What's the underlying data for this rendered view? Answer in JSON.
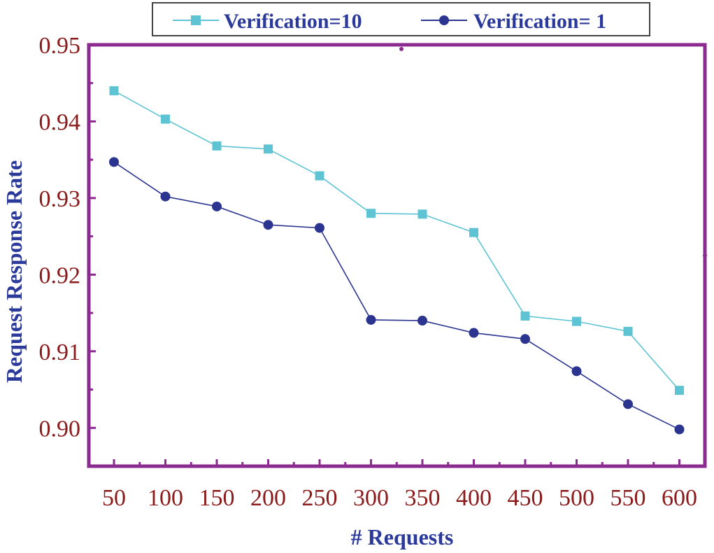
{
  "chart_data": {
    "type": "line",
    "title": "",
    "xlabel": "# Requests",
    "ylabel": "Request Response Rate",
    "x": [
      50,
      100,
      150,
      200,
      250,
      300,
      350,
      400,
      450,
      500,
      550,
      600
    ],
    "x_tick_labels": [
      "50",
      "100",
      "150",
      "200",
      "250",
      "300",
      "350",
      "400",
      "450",
      "500",
      "550",
      "600"
    ],
    "ylim": [
      0.895,
      0.95
    ],
    "y_ticks": [
      0.9,
      0.91,
      0.92,
      0.93,
      0.94,
      0.95
    ],
    "y_tick_labels": [
      "0.90",
      "0.91",
      "0.92",
      "0.93",
      "0.94",
      "0.95"
    ],
    "legend_position": "top",
    "series": [
      {
        "name": "Verification=10",
        "marker": "square",
        "color": "#5ec4d3",
        "values": [
          0.944,
          0.9403,
          0.9368,
          0.9364,
          0.9329,
          0.928,
          0.9279,
          0.9255,
          0.9146,
          0.9139,
          0.9126,
          0.9049
        ]
      },
      {
        "name": "Verification= 1",
        "marker": "circle",
        "color": "#2b3590",
        "values": [
          0.9347,
          0.9302,
          0.9289,
          0.9265,
          0.9261,
          0.9141,
          0.914,
          0.9124,
          0.9116,
          0.9074,
          0.9031,
          0.8998
        ]
      }
    ]
  },
  "colors": {
    "frame": "#8b2a8f",
    "tick_text": "#8b1a1a",
    "axis_title": "#2b3a9a"
  }
}
